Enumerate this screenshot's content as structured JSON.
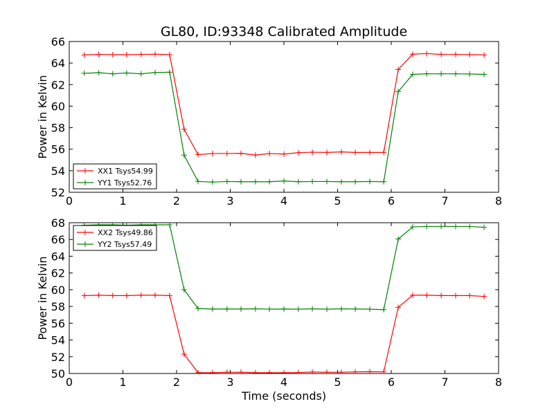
{
  "figure": {
    "title": "GL80, ID:93348 Calibrated Amplitude"
  },
  "chart_data": [
    {
      "type": "line",
      "title": "GL80, ID:93348 Calibrated Amplitude",
      "xlabel": "",
      "ylabel": "Power in Kelvin",
      "xlim": [
        0,
        8
      ],
      "ylim": [
        52,
        66
      ],
      "xticks": [
        0,
        1,
        2,
        3,
        4,
        5,
        6,
        7,
        8
      ],
      "yticks": [
        52,
        54,
        56,
        58,
        60,
        62,
        64,
        66
      ],
      "grid": false,
      "legend_position": "lower-left",
      "x": [
        0.28,
        0.55,
        0.81,
        1.07,
        1.34,
        1.6,
        1.87,
        2.14,
        2.4,
        2.67,
        2.94,
        3.2,
        3.47,
        3.73,
        4.0,
        4.27,
        4.53,
        4.8,
        5.07,
        5.33,
        5.6,
        5.86,
        6.13,
        6.4,
        6.66,
        6.93,
        7.2,
        7.46,
        7.73
      ],
      "series": [
        {
          "name": "XX1 Tsys54.99",
          "color": "#ff0000",
          "values": [
            64.75,
            64.8,
            64.78,
            64.78,
            64.8,
            64.82,
            64.78,
            57.85,
            55.5,
            55.6,
            55.6,
            55.62,
            55.45,
            55.6,
            55.55,
            55.68,
            55.72,
            55.7,
            55.75,
            55.7,
            55.7,
            55.7,
            63.4,
            64.83,
            64.88,
            64.8,
            64.8,
            64.78,
            64.75
          ]
        },
        {
          "name": "YY1 Tsys52.76",
          "color": "#008000",
          "values": [
            63.05,
            63.1,
            63.0,
            63.08,
            63.0,
            63.12,
            63.15,
            55.45,
            53.0,
            52.95,
            53.0,
            52.98,
            52.98,
            52.98,
            53.05,
            52.98,
            53.0,
            53.0,
            52.98,
            52.98,
            53.0,
            52.98,
            61.35,
            62.95,
            63.0,
            63.0,
            63.0,
            62.98,
            62.95
          ]
        }
      ]
    },
    {
      "type": "line",
      "title": "",
      "xlabel": "Time (seconds)",
      "ylabel": "Power in Kelvin",
      "xlim": [
        0,
        8
      ],
      "ylim": [
        50,
        68
      ],
      "xticks": [
        0,
        1,
        2,
        3,
        4,
        5,
        6,
        7,
        8
      ],
      "yticks": [
        50,
        52,
        54,
        56,
        58,
        60,
        62,
        64,
        66,
        68
      ],
      "grid": false,
      "legend_position": "upper-left",
      "x": [
        0.28,
        0.55,
        0.81,
        1.07,
        1.34,
        1.6,
        1.87,
        2.14,
        2.4,
        2.67,
        2.94,
        3.2,
        3.47,
        3.73,
        4.0,
        4.27,
        4.53,
        4.8,
        5.07,
        5.33,
        5.6,
        5.86,
        6.13,
        6.4,
        6.66,
        6.93,
        7.2,
        7.46,
        7.73
      ],
      "series": [
        {
          "name": "XX2 Tsys49.86",
          "color": "#ff0000",
          "values": [
            59.3,
            59.35,
            59.3,
            59.3,
            59.35,
            59.35,
            59.3,
            52.3,
            50.1,
            50.1,
            50.15,
            50.15,
            50.1,
            50.1,
            50.1,
            50.12,
            50.18,
            50.15,
            50.15,
            50.2,
            50.22,
            50.2,
            57.9,
            59.35,
            59.35,
            59.3,
            59.3,
            59.3,
            59.2
          ]
        },
        {
          "name": "YY2 Tsys57.49",
          "color": "#008000",
          "values": [
            67.7,
            67.75,
            67.75,
            67.7,
            67.75,
            67.75,
            67.75,
            60.0,
            57.75,
            57.7,
            57.7,
            57.7,
            57.72,
            57.68,
            57.7,
            57.68,
            57.72,
            57.68,
            57.72,
            57.7,
            57.68,
            57.62,
            66.05,
            67.5,
            67.55,
            67.55,
            67.55,
            67.55,
            67.45
          ]
        }
      ]
    }
  ]
}
